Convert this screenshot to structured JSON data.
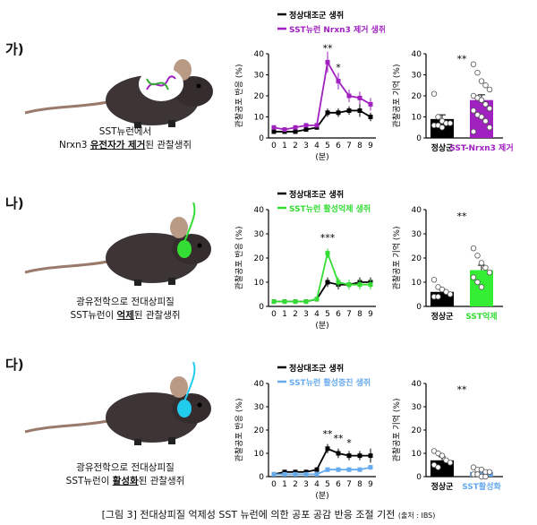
{
  "figure_caption": "[그림 3] 전대상피질 억제성 SST 뉴런에 의한 공포 공감 반응 조절 기전",
  "figure_source": "(출처 : IBS)",
  "panels": [
    {
      "label": "가)",
      "caption_lines": [
        [
          "SST뉴런에서",
          "",
          ""
        ],
        [
          "Nrxn3 ",
          "유전자가 제거",
          "된 관찰생쥐"
        ]
      ],
      "accent": "#a020c0"
    },
    {
      "label": "나)",
      "caption_lines": [
        [
          "광유전학으로 전대상피질",
          "",
          ""
        ],
        [
          "SST뉴런이 ",
          "억제",
          "된 관찰생쥐"
        ]
      ],
      "accent": "#33dd33"
    },
    {
      "label": "다)",
      "caption_lines": [
        [
          "광유전학으로 전대상피질",
          "",
          ""
        ],
        [
          "SST뉴런이 ",
          "활성화",
          "된 관찰생쥐"
        ]
      ],
      "accent": "#22ccee"
    }
  ],
  "chart_data": [
    {
      "type": "line",
      "panel": "가)",
      "x": [
        0,
        1,
        2,
        3,
        4,
        5,
        6,
        7,
        8,
        9
      ],
      "xlabel": "(분)",
      "ylabel": "관찰공포 반응 (%)",
      "ylim": [
        0,
        40
      ],
      "yticks": [
        0,
        10,
        20,
        30,
        40
      ],
      "series": [
        {
          "name": "정상대조군 생쥐",
          "color": "#000000",
          "values": [
            3,
            3,
            3,
            4,
            5,
            12,
            12,
            13,
            13,
            10
          ],
          "err": [
            1,
            1,
            1,
            1,
            1,
            2,
            2,
            2,
            3,
            2
          ]
        },
        {
          "name": "SST뉴런 Nrxn3 제거 생쥐",
          "color": "#a020c0",
          "values": [
            5,
            4,
            5,
            6,
            6,
            36,
            27,
            20,
            19,
            16
          ],
          "err": [
            1,
            1,
            1,
            1,
            1,
            5,
            4,
            3,
            3,
            3
          ]
        }
      ],
      "annotations": [
        {
          "x": 5,
          "y": 41,
          "text": "**"
        },
        {
          "x": 6,
          "y": 32,
          "text": "*"
        }
      ]
    },
    {
      "type": "bar",
      "panel": "가)",
      "categories": [
        "정상군",
        "SST-Nrxn3 제거"
      ],
      "values": [
        9,
        18
      ],
      "err": [
        2,
        2.5
      ],
      "colors": [
        "#000000",
        "#a020c0"
      ],
      "label_colors": [
        "#000000",
        "#a020c0"
      ],
      "ylabel": "관찰공포 기억 (%)",
      "ylim": [
        0,
        40
      ],
      "yticks": [
        0,
        10,
        20,
        30,
        40
      ],
      "points": [
        [
          21,
          10,
          8,
          7,
          7,
          6,
          6,
          5
        ],
        [
          35,
          31,
          27,
          25,
          23,
          20,
          19,
          18,
          16,
          14,
          13,
          11,
          10,
          8,
          5,
          3
        ]
      ],
      "annotation": "**"
    },
    {
      "type": "line",
      "panel": "나)",
      "x": [
        0,
        1,
        2,
        3,
        4,
        5,
        6,
        7,
        8,
        9
      ],
      "xlabel": "(분)",
      "ylabel": "관찰공포 반응 (%)",
      "ylim": [
        0,
        40
      ],
      "yticks": [
        0,
        10,
        20,
        30,
        40
      ],
      "series": [
        {
          "name": "정상대조군 생쥐",
          "color": "#000000",
          "values": [
            2,
            2,
            2,
            2,
            3,
            10,
            9,
            9,
            10,
            10
          ],
          "err": [
            0.5,
            0.5,
            0.5,
            0.5,
            1,
            2,
            2,
            2,
            2,
            2
          ]
        },
        {
          "name": "SST뉴런 활성억제 생쥐",
          "color": "#33dd33",
          "values": [
            2,
            2,
            2,
            2,
            3,
            22,
            10,
            9,
            9,
            9
          ],
          "err": [
            0.5,
            0.5,
            0.5,
            0.5,
            1,
            2,
            2,
            2,
            2,
            2
          ]
        }
      ],
      "annotations": [
        {
          "x": 5,
          "y": 27,
          "text": "***"
        }
      ]
    },
    {
      "type": "bar",
      "panel": "나)",
      "categories": [
        "정상군",
        "SST억제"
      ],
      "values": [
        6,
        15
      ],
      "err": [
        1,
        2
      ],
      "colors": [
        "#000000",
        "#33ee33"
      ],
      "label_colors": [
        "#000000",
        "#33dd33"
      ],
      "ylabel": "관찰공포 기억 (%)",
      "ylim": [
        0,
        40
      ],
      "yticks": [
        0,
        10,
        20,
        30,
        40
      ],
      "points": [
        [
          11,
          8,
          7,
          6,
          5,
          4,
          4
        ],
        [
          24,
          21,
          18,
          16,
          14,
          12,
          10,
          8
        ]
      ],
      "annotation": "**"
    },
    {
      "type": "line",
      "panel": "다)",
      "x": [
        0,
        1,
        2,
        3,
        4,
        5,
        6,
        7,
        8,
        9
      ],
      "xlabel": "(분)",
      "ylabel": "관찰공포 반응 (%)",
      "ylim": [
        0,
        40
      ],
      "yticks": [
        0,
        10,
        20,
        30,
        40
      ],
      "series": [
        {
          "name": "정상대조군 생쥐",
          "color": "#000000",
          "values": [
            1,
            2,
            2,
            2,
            3,
            12,
            10,
            9,
            9,
            9
          ],
          "err": [
            0.5,
            0.5,
            0.5,
            0.5,
            1,
            2,
            2,
            2,
            2,
            3
          ]
        },
        {
          "name": "SST뉴런 활성증진 생쥐",
          "color": "#66aaee",
          "values": [
            1,
            1,
            1,
            1,
            1,
            3,
            3,
            3,
            3,
            4
          ],
          "err": [
            0.5,
            0.5,
            0.5,
            0.5,
            0.5,
            1,
            1,
            1,
            1,
            1
          ]
        }
      ],
      "annotations": [
        {
          "x": 5,
          "y": 17,
          "text": "**"
        },
        {
          "x": 6,
          "y": 15,
          "text": "**"
        },
        {
          "x": 7,
          "y": 13,
          "text": "*"
        }
      ]
    },
    {
      "type": "bar",
      "panel": "다)",
      "categories": [
        "정상군",
        "SST활성화"
      ],
      "values": [
        7,
        2
      ],
      "err": [
        1.5,
        0.5
      ],
      "colors": [
        "#000000",
        "#66aaee"
      ],
      "label_colors": [
        "#000000",
        "#66aaee"
      ],
      "ylabel": "관찰공포 기억 (%)",
      "ylim": [
        0,
        40
      ],
      "yticks": [
        0,
        10,
        20,
        30,
        40
      ],
      "points": [
        [
          11,
          10,
          9,
          7,
          6,
          5,
          4
        ],
        [
          4,
          3,
          3,
          2,
          2,
          1,
          1,
          0,
          0
        ]
      ],
      "annotation": "**"
    }
  ]
}
